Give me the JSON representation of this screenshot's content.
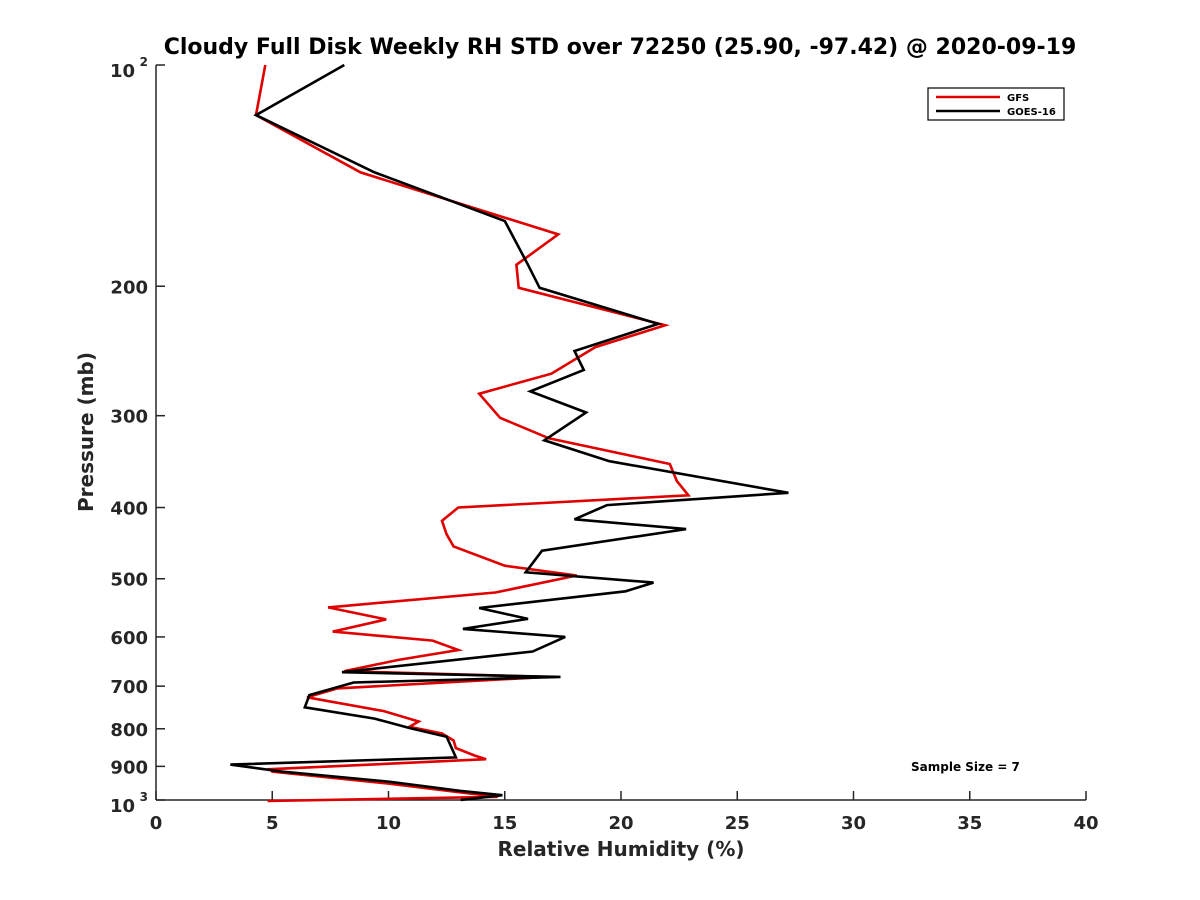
{
  "chart_data": {
    "type": "line",
    "title": "Cloudy Full Disk Weekly RH STD over 72250 (25.90, -97.42) @ 2020-09-19",
    "xlabel": "Relative Humidity (%)",
    "ylabel": "Pressure (mb)",
    "xlim": [
      0,
      40
    ],
    "ylim": [
      100,
      1000
    ],
    "yscale": "log",
    "yreversed": true,
    "xticks": [
      "0",
      "5",
      "10",
      "15",
      "20",
      "25",
      "30",
      "35",
      "40"
    ],
    "yticks": [
      {
        "value": 100,
        "label": "10",
        "sup": "2"
      },
      {
        "value": 200,
        "label": "200",
        "sup": ""
      },
      {
        "value": 300,
        "label": "300",
        "sup": ""
      },
      {
        "value": 400,
        "label": "400",
        "sup": ""
      },
      {
        "value": 500,
        "label": "500",
        "sup": ""
      },
      {
        "value": 600,
        "label": "600",
        "sup": ""
      },
      {
        "value": 700,
        "label": "700",
        "sup": ""
      },
      {
        "value": 800,
        "label": "800",
        "sup": ""
      },
      {
        "value": 900,
        "label": "900",
        "sup": ""
      },
      {
        "value": 1000,
        "label": "10",
        "sup": "3"
      }
    ],
    "grid": false,
    "legend_position": "top-right",
    "annotation": "Sample Size = 7",
    "series": [
      {
        "name": "GFS",
        "color": "#e00000",
        "points": [
          [
            4.7,
            100
          ],
          [
            4.3,
            117
          ],
          [
            8.8,
            140
          ],
          [
            17.3,
            170
          ],
          [
            15.5,
            187
          ],
          [
            15.6,
            201
          ],
          [
            21.9,
            226
          ],
          [
            18.9,
            242
          ],
          [
            17.0,
            263
          ],
          [
            13.9,
            280
          ],
          [
            14.8,
            302
          ],
          [
            16.9,
            322
          ],
          [
            22.1,
            349
          ],
          [
            22.4,
            368
          ],
          [
            22.9,
            385
          ],
          [
            13.0,
            400
          ],
          [
            12.3,
            417
          ],
          [
            12.5,
            435
          ],
          [
            12.8,
            452
          ],
          [
            15.0,
            480
          ],
          [
            18.1,
            495
          ],
          [
            14.6,
            522
          ],
          [
            7.4,
            547
          ],
          [
            9.9,
            568
          ],
          [
            7.6,
            590
          ],
          [
            11.9,
            607
          ],
          [
            13.0,
            625
          ],
          [
            10.4,
            645
          ],
          [
            8.1,
            668
          ],
          [
            16.8,
            680
          ],
          [
            7.8,
            705
          ],
          [
            6.5,
            725
          ],
          [
            9.8,
            757
          ],
          [
            11.3,
            782
          ],
          [
            10.9,
            795
          ],
          [
            12.3,
            812
          ],
          [
            12.8,
            830
          ],
          [
            12.9,
            850
          ],
          [
            13.7,
            870
          ],
          [
            14.2,
            880
          ],
          [
            4.9,
            908
          ],
          [
            5.0,
            915
          ],
          [
            10.0,
            950
          ],
          [
            13.3,
            978
          ],
          [
            14.7,
            990
          ],
          [
            4.8,
            1003
          ]
        ]
      },
      {
        "name": "GOES-16",
        "color": "#000000",
        "points": [
          [
            8.1,
            100
          ],
          [
            4.3,
            117
          ],
          [
            9.4,
            140
          ],
          [
            15.0,
            163
          ],
          [
            16.0,
            187
          ],
          [
            16.5,
            201
          ],
          [
            21.6,
            225
          ],
          [
            18.0,
            245
          ],
          [
            18.4,
            260
          ],
          [
            16.1,
            278
          ],
          [
            18.5,
            297
          ],
          [
            16.7,
            324
          ],
          [
            19.5,
            346
          ],
          [
            27.2,
            382
          ],
          [
            19.4,
            397
          ],
          [
            18.0,
            415
          ],
          [
            22.8,
            428
          ],
          [
            16.6,
            458
          ],
          [
            15.9,
            490
          ],
          [
            21.4,
            506
          ],
          [
            20.2,
            520
          ],
          [
            13.9,
            548
          ],
          [
            16.0,
            567
          ],
          [
            13.2,
            585
          ],
          [
            17.6,
            600
          ],
          [
            16.2,
            628
          ],
          [
            8.0,
            670
          ],
          [
            17.4,
            680
          ],
          [
            8.5,
            692
          ],
          [
            6.6,
            720
          ],
          [
            6.4,
            748
          ],
          [
            9.4,
            775
          ],
          [
            10.9,
            798
          ],
          [
            12.5,
            820
          ],
          [
            12.9,
            875
          ],
          [
            3.2,
            895
          ],
          [
            5.4,
            915
          ],
          [
            10.1,
            945
          ],
          [
            13.1,
            972
          ],
          [
            14.9,
            985
          ],
          [
            13.1,
            1000
          ]
        ]
      }
    ]
  }
}
